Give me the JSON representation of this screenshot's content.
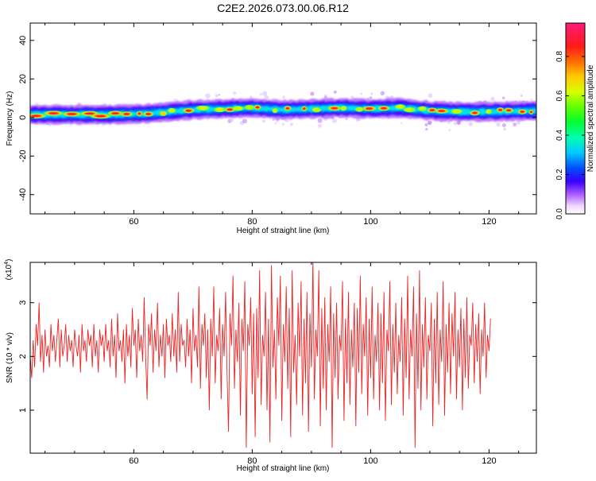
{
  "title": "C2E2.2026.073.00.06.R12",
  "chart_data": [
    {
      "type": "heatmap",
      "name": "spectrogram",
      "xlabel": "Height of straight line (km)",
      "ylabel": "Frequency (Hz)",
      "xlim": [
        42.5,
        128
      ],
      "ylim": [
        -50,
        49
      ],
      "xticks": [
        60,
        80,
        100,
        120
      ],
      "yticks": [
        -40,
        -20,
        0,
        20,
        40
      ],
      "colorbar": {
        "label": "Normalized spectral amplitude",
        "range": [
          0,
          0.97
        ],
        "ticks": [
          "0.0",
          "0.2",
          "0.4",
          "0.6",
          "0.8"
        ],
        "tick_values": [
          0.0,
          0.2,
          0.4,
          0.6,
          0.8
        ]
      },
      "ridge": [
        {
          "x": 44,
          "y": 1.5
        },
        {
          "x": 50,
          "y": 1.5
        },
        {
          "x": 56,
          "y": 1.5
        },
        {
          "x": 62,
          "y": 2
        },
        {
          "x": 66,
          "y": 3
        },
        {
          "x": 70,
          "y": 4
        },
        {
          "x": 75,
          "y": 4.5
        },
        {
          "x": 80,
          "y": 5
        },
        {
          "x": 85,
          "y": 4
        },
        {
          "x": 90,
          "y": 4.5
        },
        {
          "x": 95,
          "y": 5
        },
        {
          "x": 100,
          "y": 4.5
        },
        {
          "x": 105,
          "y": 5
        },
        {
          "x": 110,
          "y": 3.5
        },
        {
          "x": 115,
          "y": 3
        },
        {
          "x": 120,
          "y": 3
        },
        {
          "x": 128,
          "y": 3.5
        }
      ],
      "ridge_band_halfwidth": 2.5
    },
    {
      "type": "line",
      "name": "snr",
      "xlabel": "Height of straight line (km)",
      "ylabel": "SNR (10 * v/v)",
      "multiplier": "(x10",
      "multiplier_exp": "4",
      "xlim": [
        42.5,
        128
      ],
      "ylim": [
        0.2,
        3.75
      ],
      "xticks": [
        60,
        80,
        100,
        120
      ],
      "yticks": [
        1,
        2,
        3
      ],
      "series": [
        {
          "name": "SNR",
          "color": "#ee2222",
          "x_start": 42.5,
          "x_step": 0.25,
          "values": [
            2.0,
            1.6,
            2.3,
            1.8,
            2.6,
            2.2,
            3.0,
            1.9,
            2.4,
            1.7,
            2.5,
            2.0,
            2.2,
            1.8,
            2.6,
            2.1,
            2.4,
            1.9,
            2.3,
            2.7,
            1.8,
            2.5,
            2.0,
            2.2,
            2.6,
            1.9,
            2.4,
            2.1,
            2.3,
            1.8,
            2.5,
            2.2,
            2.0,
            2.4,
            1.7,
            2.6,
            2.1,
            2.3,
            1.9,
            2.5,
            2.2,
            2.4,
            1.8,
            2.6,
            2.0,
            2.3,
            1.7,
            2.5,
            2.2,
            2.4,
            1.9,
            2.6,
            2.1,
            2.3,
            1.8,
            2.7,
            2.0,
            2.4,
            1.6,
            2.8,
            2.1,
            2.3,
            1.9,
            2.5,
            1.5,
            2.6,
            2.0,
            2.4,
            1.8,
            2.9,
            2.2,
            2.5,
            1.6,
            2.7,
            2.1,
            2.4,
            1.9,
            3.1,
            2.0,
            1.2,
            2.6,
            2.2,
            2.8,
            1.7,
            2.5,
            2.1,
            3.0,
            1.8,
            2.4,
            2.0,
            2.6,
            1.6,
            2.7,
            2.2,
            2.4,
            1.9,
            2.8,
            2.0,
            2.5,
            1.7,
            3.2,
            1.9,
            2.6,
            2.2,
            2.3,
            1.8,
            2.7,
            2.0,
            2.5,
            1.5,
            2.9,
            2.1,
            2.4,
            1.8,
            3.3,
            1.4,
            2.6,
            2.2,
            2.8,
            1.6,
            2.5,
            1.0,
            2.7,
            2.0,
            3.3,
            1.5,
            2.4,
            2.1,
            2.9,
            1.2,
            2.6,
            2.0,
            3.2,
            1.7,
            0.6,
            2.8,
            2.2,
            3.5,
            1.4,
            2.5,
            1.9,
            3.0,
            0.9,
            2.7,
            2.1,
            3.4,
            0.3,
            2.6,
            2.2,
            3.1,
            1.3,
            2.8,
            0.5,
            2.9,
            1.6,
            3.6,
            1.1,
            2.4,
            2.0,
            3.2,
            1.0,
            2.7,
            0.4,
            3.7,
            1.8,
            2.5,
            1.2,
            3.1,
            2.2,
            3.5,
            0.8,
            2.6,
            1.9,
            3.3,
            1.4,
            2.9,
            0.5,
            3.6,
            1.7,
            2.4,
            1.1,
            3.0,
            2.0,
            3.4,
            0.9,
            2.7,
            1.5,
            3.2,
            0.6,
            2.8,
            1.8,
            3.8,
            1.2,
            2.5,
            2.0,
            3.6,
            0.7,
            2.9,
            1.4,
            3.1,
            1.0,
            2.6,
            1.9,
            3.3,
            0.3,
            2.8,
            1.6,
            3.0,
            1.2,
            2.4,
            2.1,
            3.4,
            0.8,
            2.7,
            1.5,
            3.2,
            1.1,
            2.5,
            1.8,
            3.0,
            0.7,
            2.9,
            1.7,
            3.5,
            1.3,
            2.6,
            2.0,
            3.1,
            0.9,
            2.7,
            1.6,
            3.3,
            1.2,
            2.4,
            1.9,
            3.0,
            1.0,
            2.8,
            1.5,
            3.2,
            0.8,
            2.5,
            2.1,
            3.4,
            1.1,
            2.6,
            1.7,
            3.0,
            1.3,
            2.4,
            1.9,
            3.1,
            0.9,
            2.7,
            1.6,
            3.5,
            1.2,
            2.5,
            2.0,
            3.3,
            0.3,
            2.8,
            1.4,
            3.6,
            1.0,
            2.6,
            1.8,
            3.1,
            1.2,
            2.4,
            2.1,
            3.0,
            0.7,
            2.7,
            1.5,
            3.2,
            1.1,
            2.5,
            1.9,
            3.4,
            0.9,
            2.6,
            1.7,
            3.0,
            1.3,
            2.8,
            2.0,
            3.2,
            1.2,
            2.5,
            1.8,
            2.9,
            1.0,
            2.7,
            1.6,
            3.1,
            1.4,
            2.4,
            2.2,
            3.0,
            1.5,
            2.6,
            1.9,
            2.8,
            1.3,
            2.5,
            2.0,
            3.0,
            1.6,
            2.4,
            2.1,
            2.7
          ]
        }
      ]
    }
  ]
}
